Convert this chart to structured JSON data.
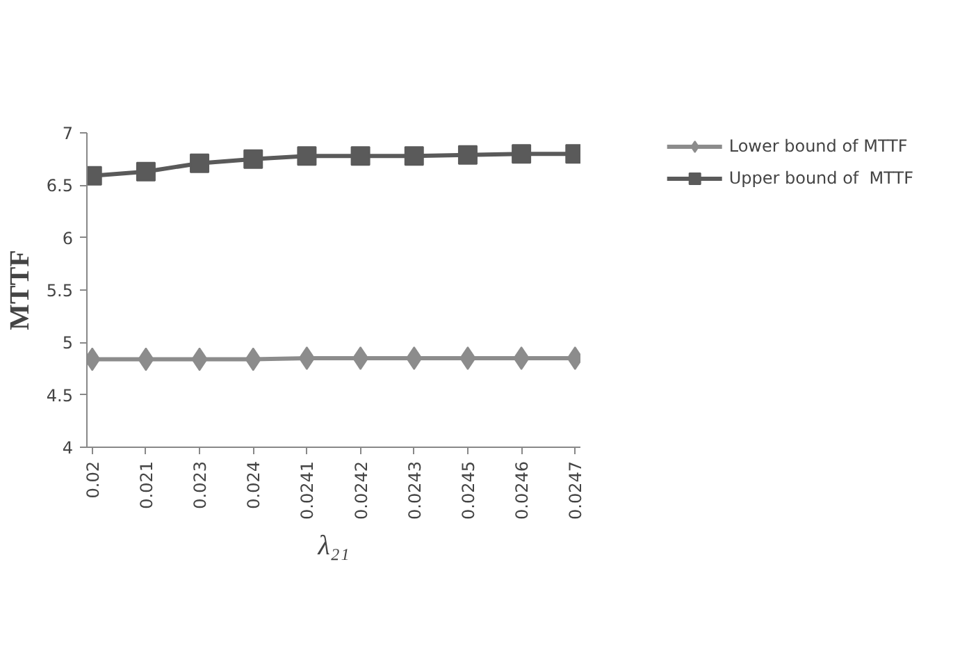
{
  "chart_data": {
    "type": "line",
    "xlabel": "λ₂₁",
    "ylabel": "MTTF",
    "categories": [
      "0.02",
      "0.021",
      "0.023",
      "0.024",
      "0.0241",
      "0.0242",
      "0.0243",
      "0.0245",
      "0.0246",
      "0.0247"
    ],
    "series": [
      {
        "name": "Lower bound of MTTF",
        "color": "#8c8c8c",
        "marker": "diamond",
        "values": [
          4.84,
          4.84,
          4.84,
          4.84,
          4.85,
          4.85,
          4.85,
          4.85,
          4.85,
          4.85
        ]
      },
      {
        "name": "Upper bound of  MTTF",
        "color": "#5a5a5a",
        "marker": "square",
        "values": [
          6.59,
          6.63,
          6.71,
          6.75,
          6.78,
          6.78,
          6.78,
          6.79,
          6.8,
          6.8
        ]
      }
    ],
    "ylim": [
      4,
      7
    ],
    "yticks": [
      4,
      4.5,
      5,
      5.5,
      6,
      6.5,
      7
    ],
    "grid": false,
    "legend": "top right"
  }
}
